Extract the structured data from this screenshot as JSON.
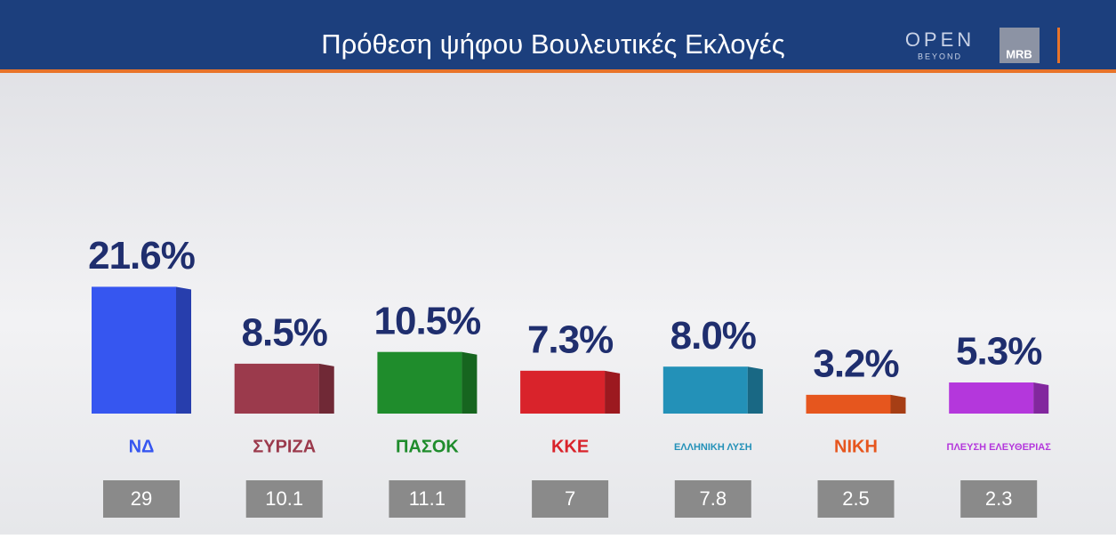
{
  "chart_data": {
    "type": "bar",
    "title": "Πρόθεση ψήφου Βουλευτικές Εκλογές",
    "brand": {
      "channel": "OPEN",
      "tagline": "BEYOND",
      "pollster": "MRB"
    },
    "categories": [
      "ΝΔ",
      "ΣΥΡΙΖΑ",
      "ΠΑΣΟΚ",
      "ΚΚΕ",
      "ΕΛΛΗΝΙΚΗ ΛΥΣΗ",
      "ΝΙΚΗ",
      "ΠΛΕΥΣΗ ΕΛΕΥΘΕΡΙΑΣ"
    ],
    "values": [
      21.6,
      8.5,
      10.5,
      7.3,
      8.0,
      3.2,
      5.3
    ],
    "value_labels": [
      "21.6%",
      "8.5%",
      "10.5%",
      "7.3%",
      "8.0%",
      "3.2%",
      "5.3%"
    ],
    "colors": [
      "#3656f0",
      "#9b3a4c",
      "#1f8c2c",
      "#d9232b",
      "#2391b8",
      "#e6561e",
      "#b437dc"
    ],
    "previous_values": [
      29,
      10.1,
      11.1,
      7,
      7.8,
      2.5,
      2.3
    ]
  }
}
